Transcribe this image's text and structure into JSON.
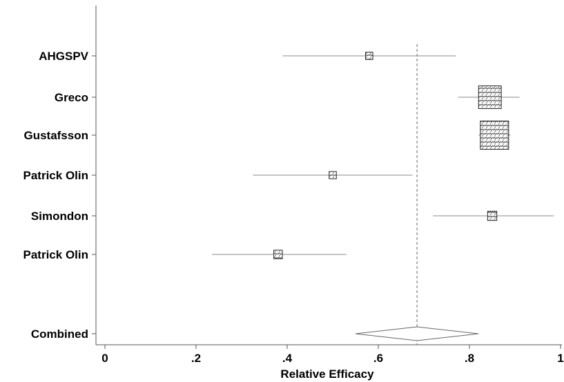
{
  "chart_data": {
    "type": "forest",
    "xlabel": "Relative Efficacy",
    "xlim": [
      0,
      1
    ],
    "x_ticks": [
      {
        "value": 0,
        "label": "0"
      },
      {
        "value": 0.2,
        "label": ".2"
      },
      {
        "value": 0.4,
        "label": ".4"
      },
      {
        "value": 0.6,
        "label": ".6"
      },
      {
        "value": 0.8,
        "label": ".8"
      },
      {
        "value": 1,
        "label": "1"
      }
    ],
    "reference_line": 0.685,
    "studies": [
      {
        "name": "AHGSPV",
        "estimate": 0.58,
        "lower": 0.39,
        "upper": 0.77,
        "weight": 1
      },
      {
        "name": "Greco",
        "estimate": 0.845,
        "lower": 0.775,
        "upper": 0.91,
        "weight": 4.5
      },
      {
        "name": "Gustafsson",
        "estimate": 0.855,
        "lower": 0.82,
        "upper": 0.89,
        "weight": 7
      },
      {
        "name": "Patrick Olin",
        "estimate": 0.5,
        "lower": 0.325,
        "upper": 0.675,
        "weight": 1
      },
      {
        "name": "Simondon",
        "estimate": 0.85,
        "lower": 0.72,
        "upper": 0.985,
        "weight": 1.6
      },
      {
        "name": "Patrick Olin",
        "estimate": 0.38,
        "lower": 0.235,
        "upper": 0.53,
        "weight": 1.4
      }
    ],
    "combined": {
      "name": "Combined",
      "estimate": 0.685,
      "lower": 0.55,
      "upper": 0.82
    }
  }
}
